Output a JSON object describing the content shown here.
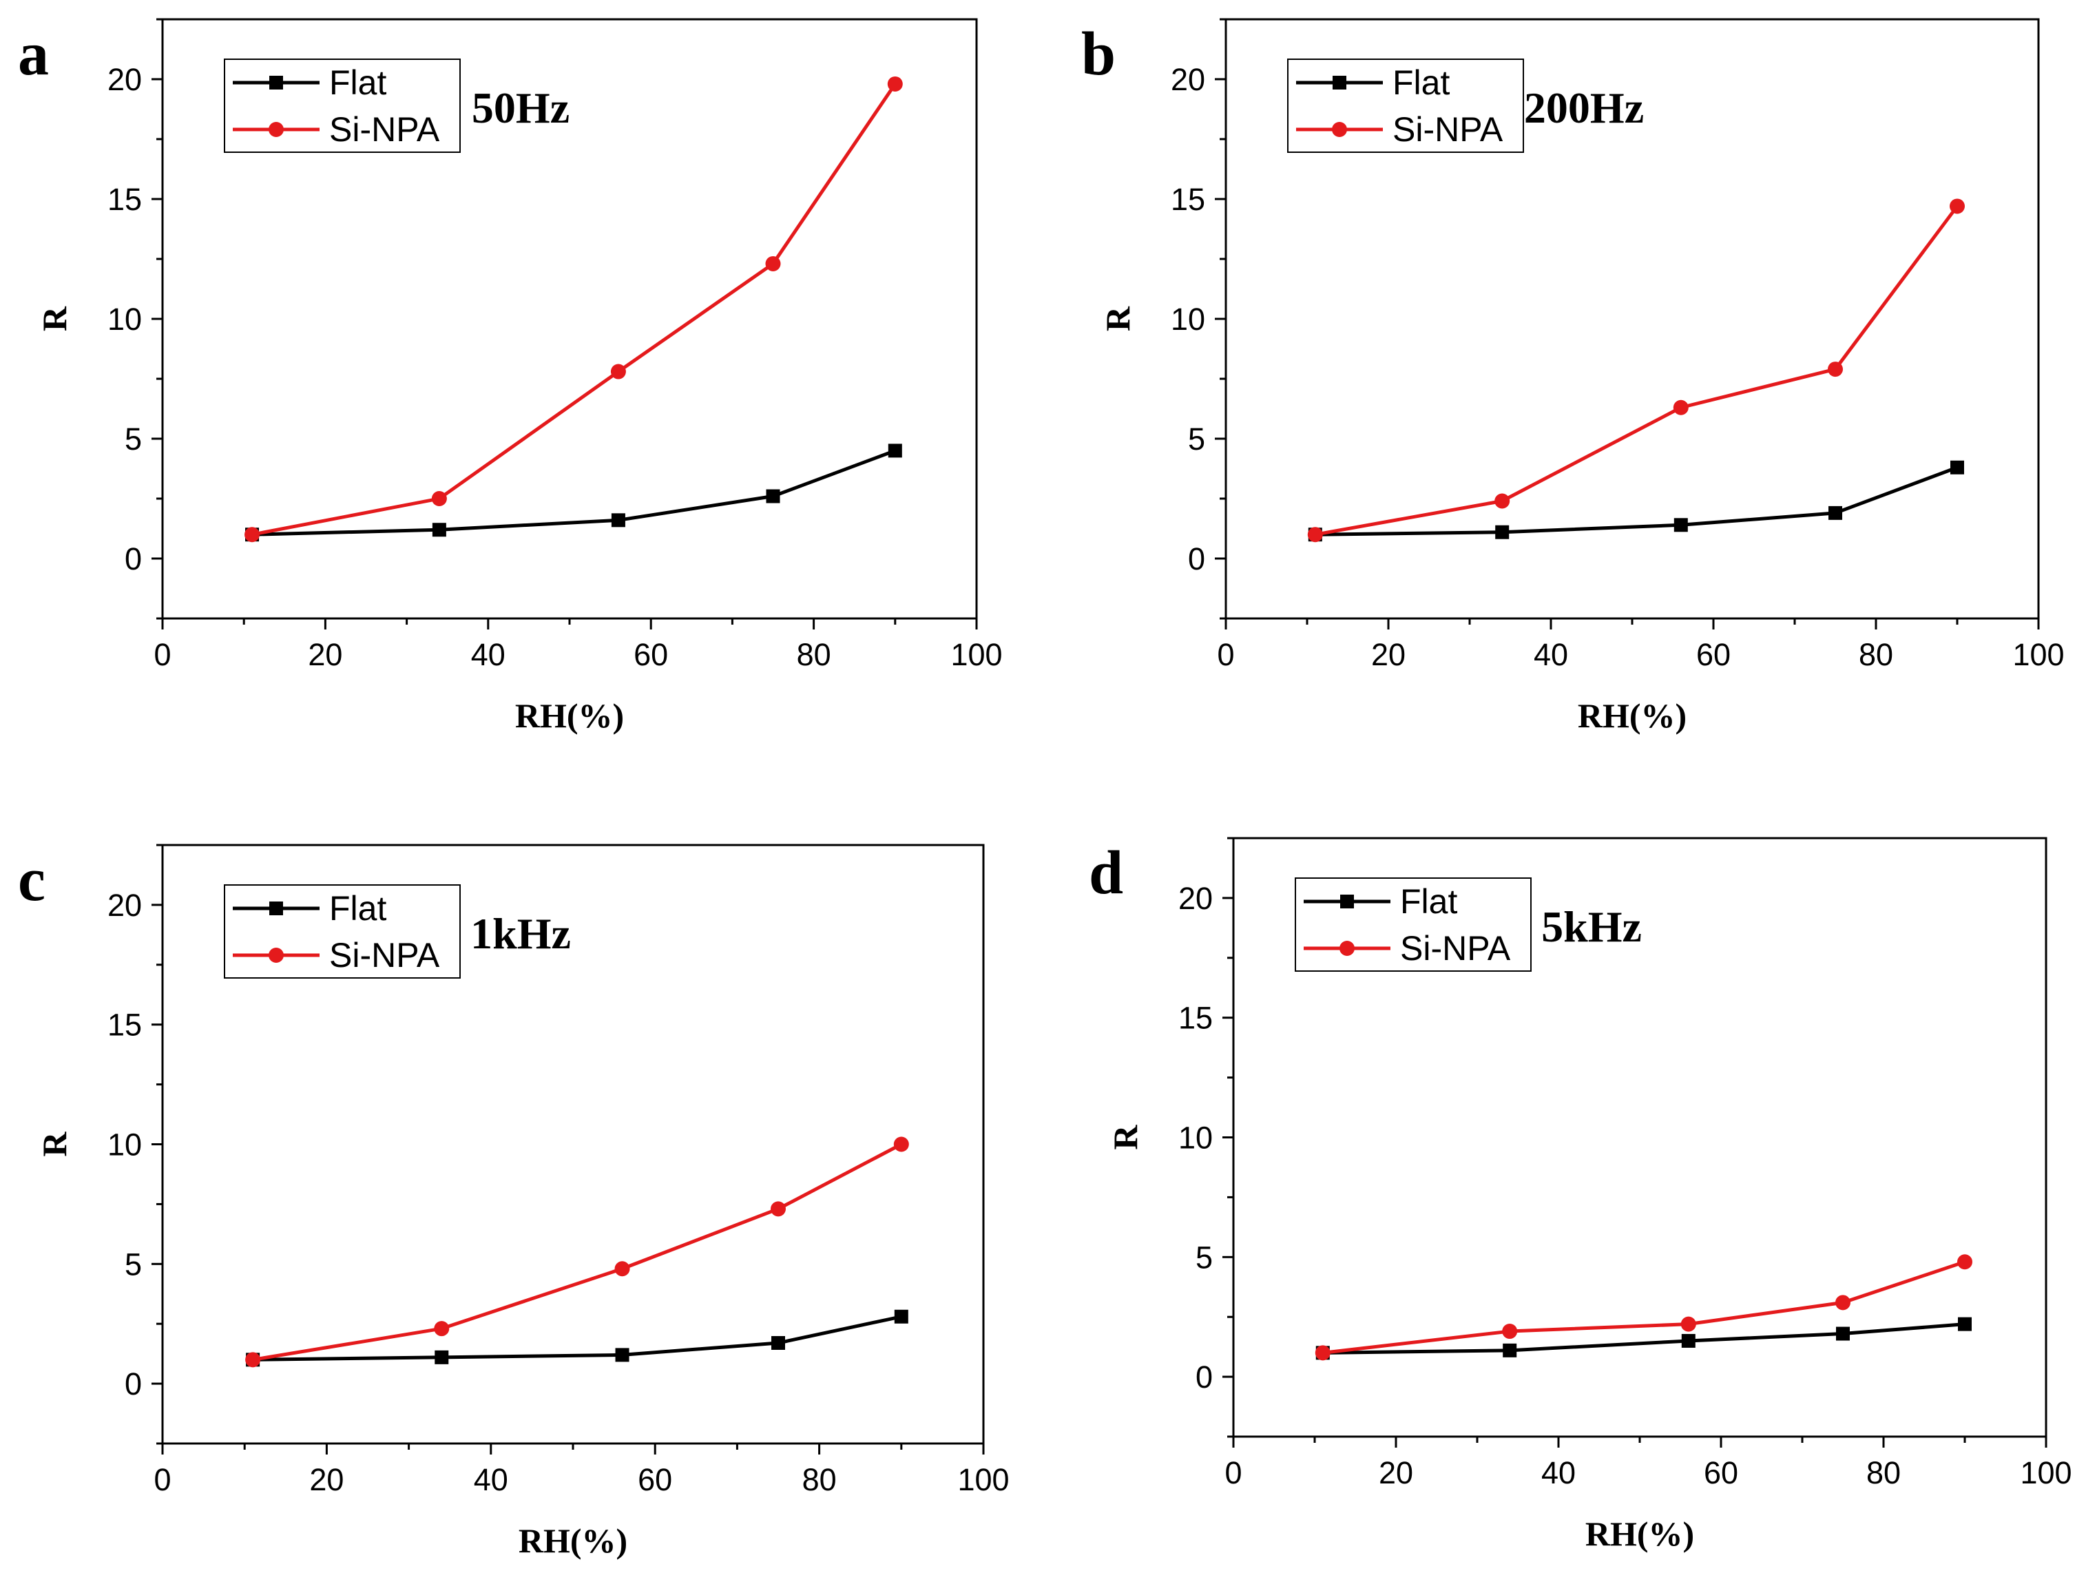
{
  "colors": {
    "Flat": "#000000",
    "Si-NPA": "#e41a1c"
  },
  "chart_data": [
    {
      "type": "line",
      "panel_label": "a",
      "annotation": "50Hz",
      "xlabel": "RH(%)",
      "ylabel": "R",
      "xlim": [
        0,
        100
      ],
      "ylim": [
        -2.5,
        22.5
      ],
      "xticks": [
        0,
        20,
        40,
        60,
        80,
        100
      ],
      "yticks": [
        0,
        5,
        10,
        15,
        20
      ],
      "legend_position": "top-left",
      "grid": false,
      "x": [
        11,
        34,
        56,
        75,
        90
      ],
      "series": [
        {
          "name": "Flat",
          "marker": "square",
          "values": [
            1.0,
            1.2,
            1.6,
            2.6,
            4.5
          ]
        },
        {
          "name": "Si-NPA",
          "marker": "circle",
          "values": [
            1.0,
            2.5,
            7.8,
            12.3,
            19.8
          ]
        }
      ]
    },
    {
      "type": "line",
      "panel_label": "b",
      "annotation": "200Hz",
      "xlabel": "RH(%)",
      "ylabel": "R",
      "xlim": [
        0,
        100
      ],
      "ylim": [
        -2.5,
        22.5
      ],
      "xticks": [
        0,
        20,
        40,
        60,
        80,
        100
      ],
      "yticks": [
        0,
        5,
        10,
        15,
        20
      ],
      "legend_position": "top-left",
      "grid": false,
      "x": [
        11,
        34,
        56,
        75,
        90
      ],
      "series": [
        {
          "name": "Flat",
          "marker": "square",
          "values": [
            1.0,
            1.1,
            1.4,
            1.9,
            3.8
          ]
        },
        {
          "name": "Si-NPA",
          "marker": "circle",
          "values": [
            1.0,
            2.4,
            6.3,
            7.9,
            14.7
          ]
        }
      ]
    },
    {
      "type": "line",
      "panel_label": "c",
      "annotation": "1kHz",
      "xlabel": "RH(%)",
      "ylabel": "R",
      "xlim": [
        0,
        100
      ],
      "ylim": [
        -2.5,
        22.5
      ],
      "xticks": [
        0,
        20,
        40,
        60,
        80,
        100
      ],
      "yticks": [
        0,
        5,
        10,
        15,
        20
      ],
      "legend_position": "top-left",
      "grid": false,
      "x": [
        11,
        34,
        56,
        75,
        90
      ],
      "series": [
        {
          "name": "Flat",
          "marker": "square",
          "values": [
            1.0,
            1.1,
            1.2,
            1.7,
            2.8
          ]
        },
        {
          "name": "Si-NPA",
          "marker": "circle",
          "values": [
            1.0,
            2.3,
            4.8,
            7.3,
            10.0
          ]
        }
      ]
    },
    {
      "type": "line",
      "panel_label": "d",
      "annotation": "5kHz",
      "xlabel": "RH(%)",
      "ylabel": "R",
      "xlim": [
        0,
        100
      ],
      "ylim": [
        -2.5,
        22.5
      ],
      "xticks": [
        0,
        20,
        40,
        60,
        80,
        100
      ],
      "yticks": [
        0,
        5,
        10,
        15,
        20
      ],
      "legend_position": "top-left",
      "grid": false,
      "x": [
        11,
        34,
        56,
        75,
        90
      ],
      "series": [
        {
          "name": "Flat",
          "marker": "square",
          "values": [
            1.0,
            1.1,
            1.5,
            1.8,
            2.2
          ]
        },
        {
          "name": "Si-NPA",
          "marker": "circle",
          "values": [
            1.0,
            1.9,
            2.2,
            3.1,
            4.8
          ]
        }
      ]
    }
  ]
}
